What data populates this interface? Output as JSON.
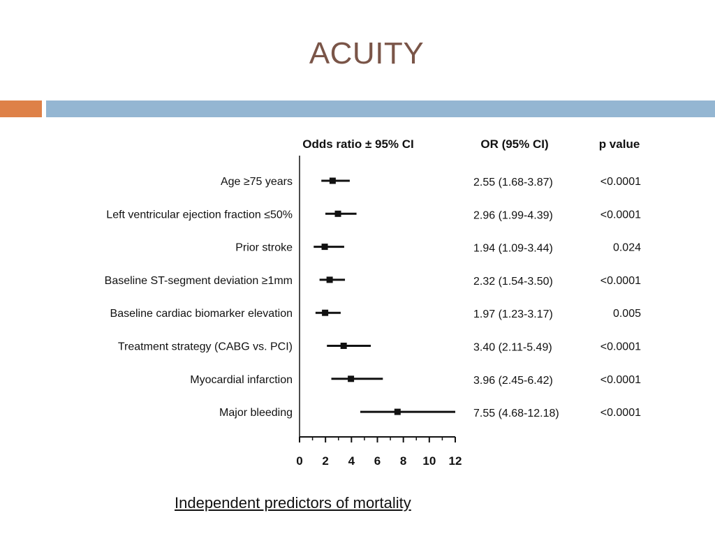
{
  "slide": {
    "title": "ACUITY",
    "caption": "Independent predictors of mortality"
  },
  "colors": {
    "title": "#7a5548",
    "accent_orange": "#de8148",
    "accent_blue": "#94b6d2"
  },
  "chart_data": {
    "type": "forest",
    "headers": {
      "plot": "Odds ratio ± 95% CI",
      "or": "OR (95% CI)",
      "p": "p value"
    },
    "x_ticks": [
      0,
      2,
      4,
      6,
      8,
      10,
      12
    ],
    "xlim": [
      0,
      12
    ],
    "reference_line": 0,
    "rows": [
      {
        "label": "Age ≥75 years",
        "or": 2.55,
        "lo": 1.68,
        "hi": 3.87,
        "or_text": "2.55 (1.68-3.87)",
        "p": "<0.0001"
      },
      {
        "label": "Left ventricular ejection fraction ≤50%",
        "or": 2.96,
        "lo": 1.99,
        "hi": 4.39,
        "or_text": "2.96 (1.99-4.39)",
        "p": "<0.0001"
      },
      {
        "label": "Prior stroke",
        "or": 1.94,
        "lo": 1.09,
        "hi": 3.44,
        "or_text": "1.94 (1.09-3.44)",
        "p": "0.024"
      },
      {
        "label": "Baseline ST-segment deviation ≥1mm",
        "or": 2.32,
        "lo": 1.54,
        "hi": 3.5,
        "or_text": "2.32 (1.54-3.50)",
        "p": "<0.0001"
      },
      {
        "label": "Baseline cardiac biomarker elevation",
        "or": 1.97,
        "lo": 1.23,
        "hi": 3.17,
        "or_text": "1.97 (1.23-3.17)",
        "p": "0.005"
      },
      {
        "label": "Treatment strategy (CABG vs. PCI)",
        "or": 3.4,
        "lo": 2.11,
        "hi": 5.49,
        "or_text": "3.40 (2.11-5.49)",
        "p": "<0.0001"
      },
      {
        "label": "Myocardial infarction",
        "or": 3.96,
        "lo": 2.45,
        "hi": 6.42,
        "or_text": "3.96 (2.45-6.42)",
        "p": "<0.0001"
      },
      {
        "label": "Major bleeding",
        "or": 7.55,
        "lo": 4.68,
        "hi": 12.18,
        "or_text": "7.55 (4.68-12.18)",
        "p": "<0.0001"
      }
    ]
  }
}
